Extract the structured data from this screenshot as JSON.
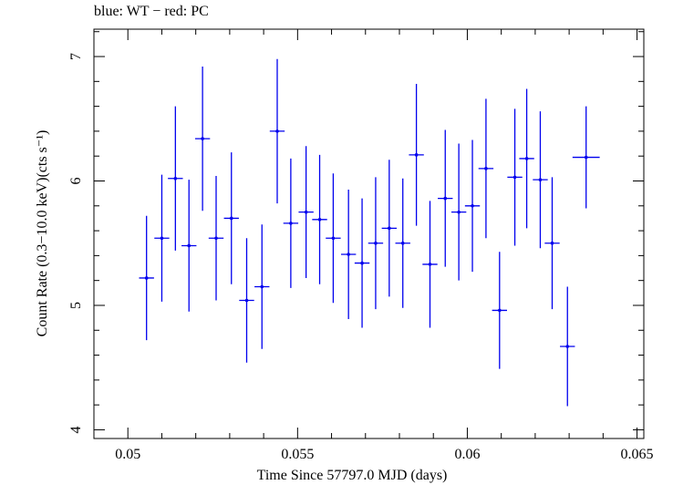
{
  "chart_data": {
    "type": "scatter",
    "title": "blue: WT − red: PC",
    "xlabel": "Time Since 57797.0 MJD (days)",
    "ylabel": "Count Rate (0.3−10.0 keV)(cts s⁻¹)",
    "xlim": [
      0.049,
      0.0652
    ],
    "ylim": [
      3.93,
      7.22
    ],
    "x_ticks": [
      0.05,
      0.055,
      0.06,
      0.065
    ],
    "x_tick_labels": [
      "0.05",
      "0.055",
      "0.06",
      "0.065"
    ],
    "y_ticks": [
      4,
      5,
      6,
      7
    ],
    "y_tick_labels": [
      "4",
      "5",
      "6",
      "7"
    ],
    "grid": false,
    "series": [
      {
        "name": "WT",
        "color": "#0000ee",
        "points": [
          {
            "x": 0.05055,
            "xerr": 0.00022,
            "y": 5.22,
            "yerr": 0.5
          },
          {
            "x": 0.051,
            "xerr": 0.00022,
            "y": 5.54,
            "yerr": 0.51
          },
          {
            "x": 0.0514,
            "xerr": 0.00022,
            "y": 6.02,
            "yerr": 0.58
          },
          {
            "x": 0.0518,
            "xerr": 0.00022,
            "y": 5.48,
            "yerr": 0.53
          },
          {
            "x": 0.0522,
            "xerr": 0.00022,
            "y": 6.34,
            "yerr": 0.58
          },
          {
            "x": 0.0526,
            "xerr": 0.00022,
            "y": 5.54,
            "yerr": 0.5
          },
          {
            "x": 0.05305,
            "xerr": 0.00022,
            "y": 5.7,
            "yerr": 0.53
          },
          {
            "x": 0.0535,
            "xerr": 0.00022,
            "y": 5.04,
            "yerr": 0.5
          },
          {
            "x": 0.05395,
            "xerr": 0.00022,
            "y": 5.15,
            "yerr": 0.5
          },
          {
            "x": 0.0544,
            "xerr": 0.00022,
            "y": 6.4,
            "yerr": 0.58
          },
          {
            "x": 0.0548,
            "xerr": 0.00022,
            "y": 5.66,
            "yerr": 0.52
          },
          {
            "x": 0.05525,
            "xerr": 0.00022,
            "y": 5.75,
            "yerr": 0.53
          },
          {
            "x": 0.05565,
            "xerr": 0.00022,
            "y": 5.69,
            "yerr": 0.52
          },
          {
            "x": 0.05605,
            "xerr": 0.00022,
            "y": 5.54,
            "yerr": 0.52
          },
          {
            "x": 0.0565,
            "xerr": 0.00022,
            "y": 5.41,
            "yerr": 0.52
          },
          {
            "x": 0.0569,
            "xerr": 0.00022,
            "y": 5.34,
            "yerr": 0.52
          },
          {
            "x": 0.0573,
            "xerr": 0.00022,
            "y": 5.5,
            "yerr": 0.53
          },
          {
            "x": 0.0577,
            "xerr": 0.00022,
            "y": 5.62,
            "yerr": 0.55
          },
          {
            "x": 0.0581,
            "xerr": 0.00022,
            "y": 5.5,
            "yerr": 0.52
          },
          {
            "x": 0.0585,
            "xerr": 0.00022,
            "y": 6.21,
            "yerr": 0.57
          },
          {
            "x": 0.0589,
            "xerr": 0.00022,
            "y": 5.33,
            "yerr": 0.51
          },
          {
            "x": 0.05935,
            "xerr": 0.00022,
            "y": 5.86,
            "yerr": 0.55
          },
          {
            "x": 0.05975,
            "xerr": 0.00022,
            "y": 5.75,
            "yerr": 0.55
          },
          {
            "x": 0.06015,
            "xerr": 0.00022,
            "y": 5.8,
            "yerr": 0.53
          },
          {
            "x": 0.06055,
            "xerr": 0.00022,
            "y": 6.1,
            "yerr": 0.56
          },
          {
            "x": 0.06095,
            "xerr": 0.00022,
            "y": 4.96,
            "yerr": 0.47
          },
          {
            "x": 0.0614,
            "xerr": 0.00022,
            "y": 6.03,
            "yerr": 0.55
          },
          {
            "x": 0.06175,
            "xerr": 0.00022,
            "y": 6.18,
            "yerr": 0.56
          },
          {
            "x": 0.06215,
            "xerr": 0.00022,
            "y": 6.01,
            "yerr": 0.55
          },
          {
            "x": 0.0625,
            "xerr": 0.00022,
            "y": 5.5,
            "yerr": 0.53
          },
          {
            "x": 0.06295,
            "xerr": 0.00022,
            "y": 4.67,
            "yerr": 0.48
          },
          {
            "x": 0.0635,
            "xerr": 0.0004,
            "y": 6.19,
            "yerr": 0.41
          }
        ]
      }
    ]
  }
}
